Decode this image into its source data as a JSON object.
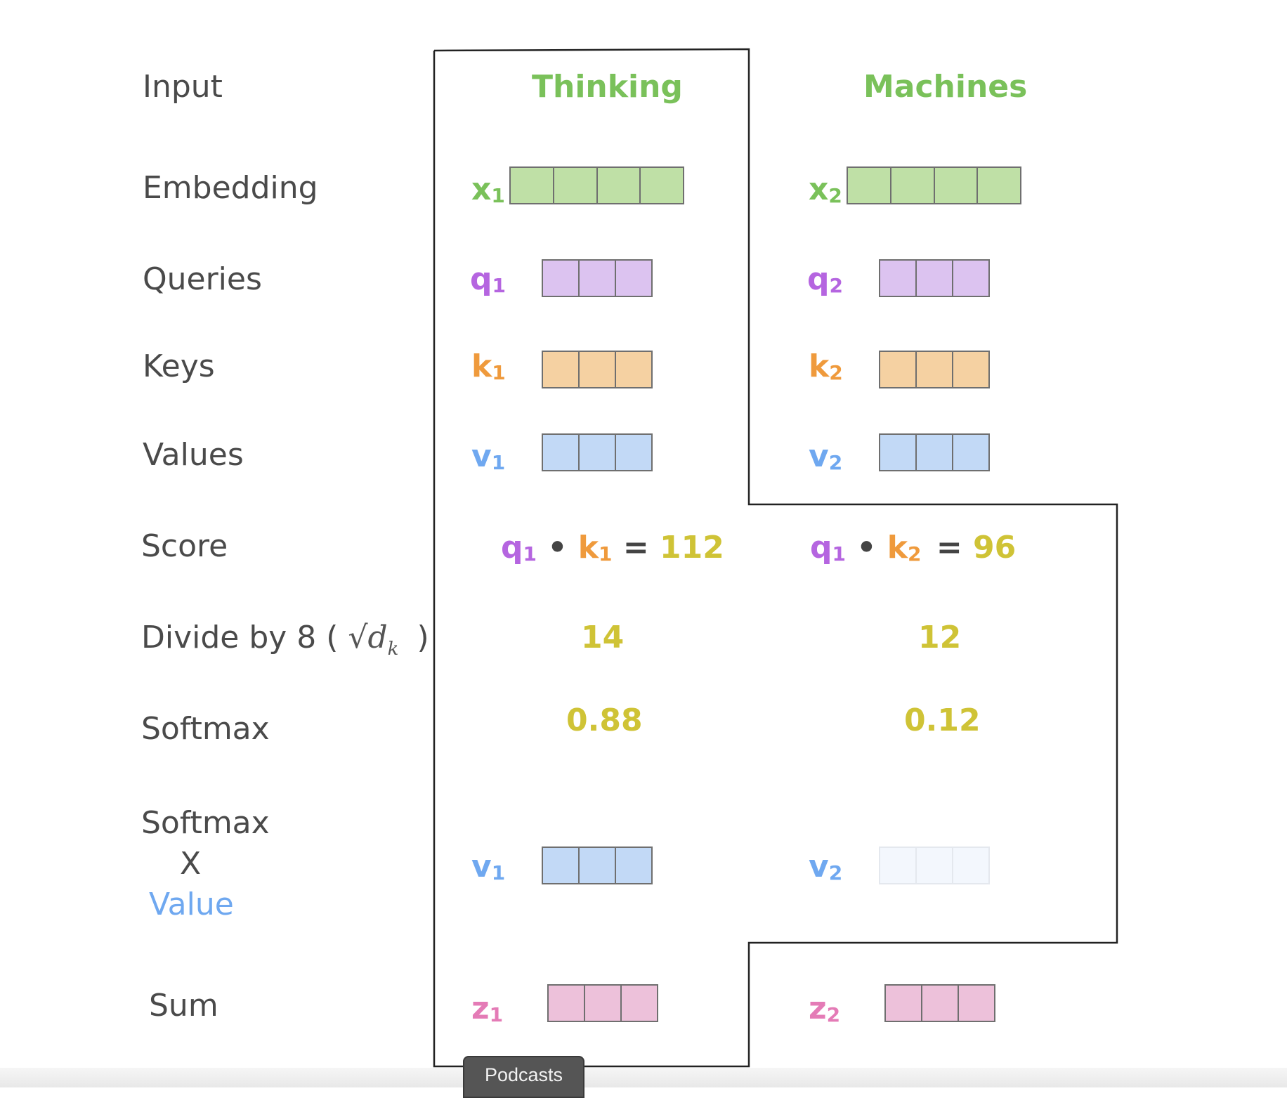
{
  "row_labels": {
    "input": "Input",
    "embedding": "Embedding",
    "queries": "Queries",
    "keys": "Keys",
    "values": "Values",
    "score": "Score",
    "divide_prefix": "Divide by 8 (",
    "divide_sqrt": "√d",
    "divide_sqrt_sub": "k",
    "divide_suffix": ")",
    "softmax": "Softmax",
    "softmax_x_line1": "Softmax",
    "softmax_x_line2": "X",
    "softmax_x_line3": "Value",
    "sum": "Sum"
  },
  "words": [
    "Thinking",
    "Machines"
  ],
  "vectors": {
    "x1": {
      "base": "x",
      "sub": "1",
      "cells": 4,
      "fill": "#bfe0a6"
    },
    "x2": {
      "base": "x",
      "sub": "2",
      "cells": 4,
      "fill": "#bfe0a6"
    },
    "q1": {
      "base": "q",
      "sub": "1",
      "cells": 3,
      "fill": "#dcc3f0"
    },
    "q2": {
      "base": "q",
      "sub": "2",
      "cells": 3,
      "fill": "#dcc3f0"
    },
    "k1": {
      "base": "k",
      "sub": "1",
      "cells": 3,
      "fill": "#f5d1a2"
    },
    "k2": {
      "base": "k",
      "sub": "2",
      "cells": 3,
      "fill": "#f5d1a2"
    },
    "v1": {
      "base": "v",
      "sub": "1",
      "cells": 3,
      "fill": "#c2d9f6"
    },
    "v2": {
      "base": "v",
      "sub": "2",
      "cells": 3,
      "fill": "#c2d9f6"
    },
    "wv1": {
      "base": "v",
      "sub": "1",
      "cells": 3,
      "fill": "#c2d9f6"
    },
    "wv2": {
      "base": "v",
      "sub": "2",
      "cells": 3,
      "fill": "#f3f7fd"
    },
    "z1": {
      "base": "z",
      "sub": "1",
      "cells": 3,
      "fill": "#edc1da"
    },
    "z2": {
      "base": "z",
      "sub": "2",
      "cells": 3,
      "fill": "#edc1da"
    }
  },
  "score": {
    "col1": {
      "q": "q",
      "q_sub": "1",
      "dot": "•",
      "k": "k",
      "k_sub": "1",
      "eq": "=",
      "value": "112"
    },
    "col2": {
      "q": "q",
      "q_sub": "1",
      "dot": "•",
      "k": "k",
      "k_sub": "2",
      "eq": "=",
      "value": "96"
    }
  },
  "divided": [
    "14",
    "12"
  ],
  "softmax": [
    "0.88",
    "0.12"
  ],
  "colors": {
    "word": "#7ac15a",
    "query": "#b565e0",
    "key": "#ef9a3c",
    "value": "#6fa8f0",
    "output": "#e47bb6",
    "number": "#cfc336"
  },
  "tab": {
    "label": "Podcasts"
  }
}
